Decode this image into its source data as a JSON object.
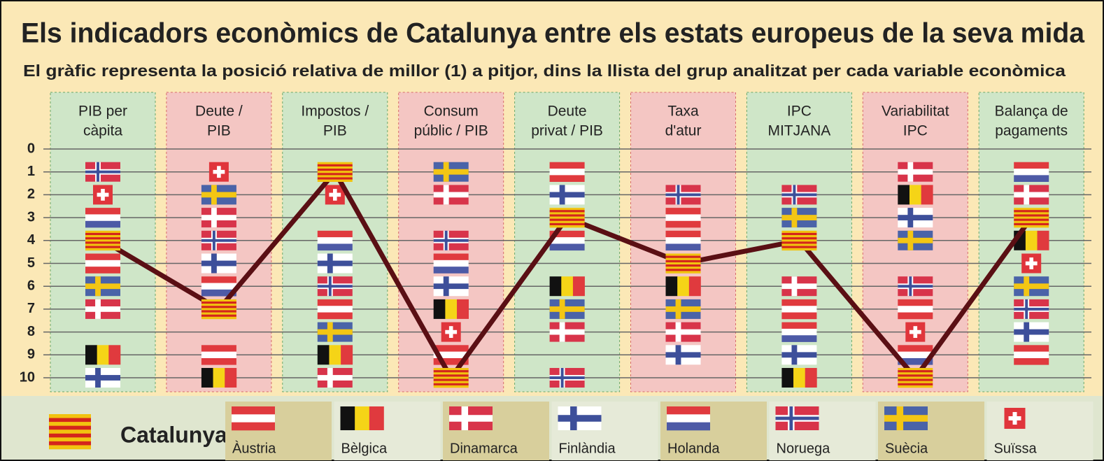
{
  "chart_data": {
    "type": "line",
    "title": "Els indicadors econòmics de Catalunya entre els estats europeus de la seva mida",
    "subtitle": "El gràfic representa la posició relativa de millor (1) a pitjor, dins la llista del grup analitzat per cada variable econòmica",
    "categories": [
      [
        "PIB per",
        "càpita"
      ],
      [
        "Deute /",
        "PIB"
      ],
      [
        "Impostos /",
        "PIB"
      ],
      [
        "Consum",
        "públic / PIB"
      ],
      [
        "Deute",
        "privat / PIB"
      ],
      [
        "Taxa",
        "d'atur"
      ],
      [
        "IPC",
        "MITJANA"
      ],
      [
        "Variabilitat",
        "IPC"
      ],
      [
        "Balança de",
        "pagaments"
      ]
    ],
    "ylim": [
      0,
      10
    ],
    "inverted": true,
    "yticks": [
      0,
      1,
      2,
      3,
      4,
      5,
      6,
      7,
      8,
      9,
      10
    ],
    "grid": true,
    "series": [
      {
        "name": "Catalunya",
        "color": "#5a0f14",
        "values": [
          4,
          7,
          1,
          10,
          3,
          5,
          4,
          10,
          3
        ]
      },
      {
        "name": "Àustria",
        "values": [
          5,
          9,
          7,
          9,
          1,
          3,
          7,
          7,
          9
        ]
      },
      {
        "name": "Bèlgica",
        "values": [
          9,
          10,
          9,
          7,
          6,
          6,
          10,
          2,
          4
        ]
      },
      {
        "name": "Dinamarca",
        "values": [
          7,
          3,
          10,
          2,
          8,
          8,
          6,
          1,
          2
        ]
      },
      {
        "name": "Finlàndia",
        "values": [
          10,
          5,
          5,
          6,
          2,
          9,
          9,
          3,
          8
        ]
      },
      {
        "name": "Holanda",
        "values": [
          3,
          6,
          4,
          5,
          4,
          4,
          8,
          9,
          1
        ]
      },
      {
        "name": "Noruega",
        "values": [
          1,
          4,
          6,
          4,
          10,
          2,
          2,
          6,
          7
        ]
      },
      {
        "name": "Suècia",
        "values": [
          6,
          2,
          8,
          1,
          7,
          7,
          3,
          4,
          6
        ]
      },
      {
        "name": "Suïssa",
        "values": [
          2,
          1,
          2,
          8,
          null,
          null,
          null,
          8,
          5
        ]
      }
    ]
  }
}
